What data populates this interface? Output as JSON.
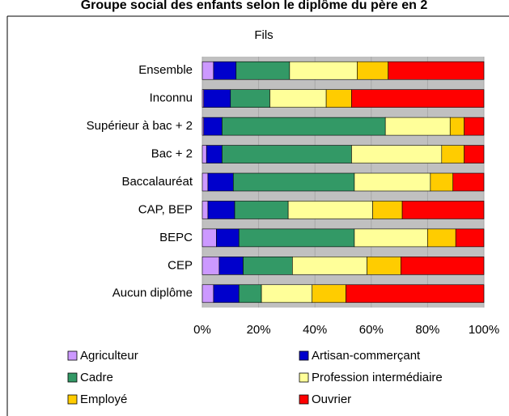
{
  "chart_data": {
    "type": "stacked-bar-horizontal",
    "title": "Groupe social des enfants selon le diplôme du père en 2",
    "subtitle": "Fils",
    "categories": [
      "Ensemble",
      "Inconnu",
      "Supérieur à bac + 2",
      "Bac + 2",
      "Baccalauréat",
      "CAP, BEP",
      "BEPC",
      "CEP",
      "Aucun diplôme"
    ],
    "series": [
      {
        "name": "Agriculteur",
        "color": "#cc99ff",
        "values": [
          4,
          0.5,
          0.5,
          1.5,
          2,
          2,
          5,
          6,
          4
        ]
      },
      {
        "name": "Artisan-commerçant",
        "color": "#0000cc",
        "values": [
          8,
          9.5,
          6.5,
          5.5,
          9,
          9.5,
          8,
          8.5,
          9
        ]
      },
      {
        "name": "Cadre",
        "color": "#339966",
        "values": [
          19,
          14,
          58,
          46,
          43,
          19,
          41,
          17.5,
          8
        ]
      },
      {
        "name": "Profession intermédiaire",
        "color": "#ffff99",
        "values": [
          24,
          20,
          23,
          32,
          27,
          30,
          26,
          26.5,
          18
        ]
      },
      {
        "name": "Employé",
        "color": "#ffcc00",
        "values": [
          11,
          9,
          5,
          8,
          8,
          10.5,
          10,
          12,
          12
        ]
      },
      {
        "name": "Ouvrier",
        "color": "#ff0000",
        "values": [
          34,
          47,
          7,
          7,
          11,
          29,
          10,
          29.5,
          49
        ]
      }
    ],
    "xlim": [
      0,
      100
    ],
    "xticks": [
      {
        "value": 0,
        "label": "0%"
      },
      {
        "value": 20,
        "label": "20%"
      },
      {
        "value": 40,
        "label": "40%"
      },
      {
        "value": 60,
        "label": "60%"
      },
      {
        "value": 80,
        "label": "80%"
      },
      {
        "value": 100,
        "label": "100%"
      }
    ],
    "grid": true
  }
}
